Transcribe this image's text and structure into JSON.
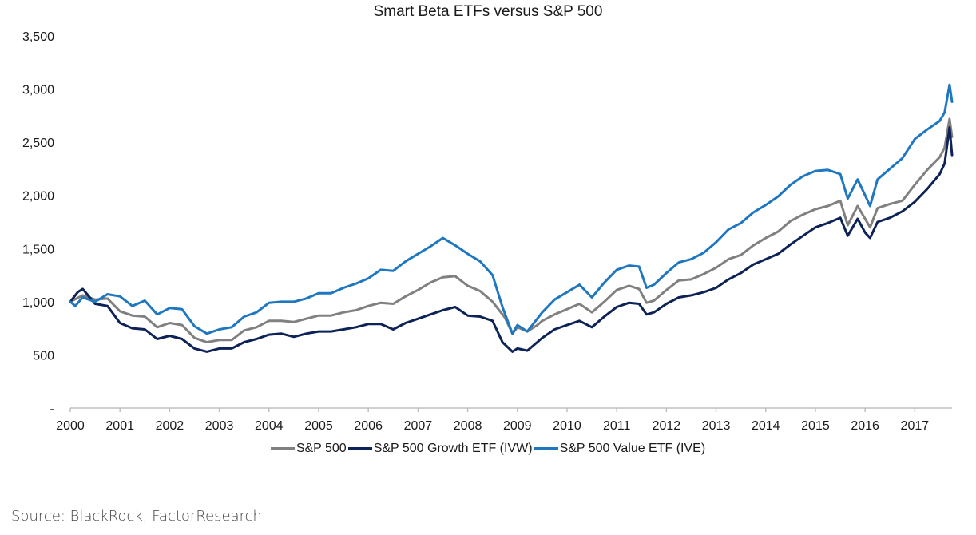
{
  "chart_data": {
    "type": "line",
    "title": "Smart Beta ETFs versus S&P 500",
    "xlabel": "",
    "ylabel": "",
    "xlim": [
      2000,
      2017.75
    ],
    "ylim": [
      0,
      3500
    ],
    "x_ticks": [
      "2000",
      "2001",
      "2002",
      "2003",
      "2004",
      "2005",
      "2006",
      "2007",
      "2008",
      "2009",
      "2010",
      "2011",
      "2012",
      "2013",
      "2014",
      "2015",
      "2016",
      "2017"
    ],
    "y_ticks": [
      {
        "value": 0,
        "label": "-"
      },
      {
        "value": 500,
        "label": "500"
      },
      {
        "value": 1000,
        "label": "1,000"
      },
      {
        "value": 1500,
        "label": "1,500"
      },
      {
        "value": 2000,
        "label": "2,000"
      },
      {
        "value": 2500,
        "label": "2,500"
      },
      {
        "value": 3000,
        "label": "3,000"
      },
      {
        "value": 3500,
        "label": "3,500"
      }
    ],
    "grid": false,
    "legend_position": "bottom",
    "series": [
      {
        "name": "S&P 500",
        "color": "#808080",
        "points": [
          [
            2000.0,
            1000
          ],
          [
            2000.25,
            1060
          ],
          [
            2000.5,
            1020
          ],
          [
            2000.75,
            1030
          ],
          [
            2001.0,
            910
          ],
          [
            2001.25,
            870
          ],
          [
            2001.5,
            860
          ],
          [
            2001.75,
            760
          ],
          [
            2002.0,
            800
          ],
          [
            2002.25,
            780
          ],
          [
            2002.5,
            660
          ],
          [
            2002.75,
            620
          ],
          [
            2003.0,
            640
          ],
          [
            2003.25,
            640
          ],
          [
            2003.5,
            730
          ],
          [
            2003.75,
            760
          ],
          [
            2004.0,
            820
          ],
          [
            2004.25,
            820
          ],
          [
            2004.5,
            810
          ],
          [
            2004.75,
            840
          ],
          [
            2005.0,
            870
          ],
          [
            2005.25,
            870
          ],
          [
            2005.5,
            900
          ],
          [
            2005.75,
            920
          ],
          [
            2006.0,
            960
          ],
          [
            2006.25,
            990
          ],
          [
            2006.5,
            980
          ],
          [
            2006.75,
            1050
          ],
          [
            2007.0,
            1110
          ],
          [
            2007.25,
            1180
          ],
          [
            2007.5,
            1230
          ],
          [
            2007.75,
            1240
          ],
          [
            2008.0,
            1150
          ],
          [
            2008.25,
            1100
          ],
          [
            2008.5,
            1000
          ],
          [
            2008.75,
            850
          ],
          [
            2008.9,
            700
          ],
          [
            2009.0,
            760
          ],
          [
            2009.2,
            720
          ],
          [
            2009.4,
            780
          ],
          [
            2009.5,
            820
          ],
          [
            2009.75,
            880
          ],
          [
            2010.0,
            930
          ],
          [
            2010.25,
            980
          ],
          [
            2010.5,
            900
          ],
          [
            2010.75,
            1000
          ],
          [
            2011.0,
            1110
          ],
          [
            2011.25,
            1150
          ],
          [
            2011.45,
            1120
          ],
          [
            2011.6,
            990
          ],
          [
            2011.75,
            1010
          ],
          [
            2012.0,
            1110
          ],
          [
            2012.25,
            1200
          ],
          [
            2012.5,
            1210
          ],
          [
            2012.75,
            1260
          ],
          [
            2013.0,
            1320
          ],
          [
            2013.25,
            1400
          ],
          [
            2013.5,
            1440
          ],
          [
            2013.75,
            1530
          ],
          [
            2014.0,
            1600
          ],
          [
            2014.25,
            1660
          ],
          [
            2014.5,
            1760
          ],
          [
            2014.75,
            1820
          ],
          [
            2015.0,
            1870
          ],
          [
            2015.25,
            1900
          ],
          [
            2015.5,
            1950
          ],
          [
            2015.65,
            1720
          ],
          [
            2015.85,
            1900
          ],
          [
            2016.0,
            1780
          ],
          [
            2016.1,
            1700
          ],
          [
            2016.25,
            1880
          ],
          [
            2016.5,
            1920
          ],
          [
            2016.75,
            1950
          ],
          [
            2017.0,
            2100
          ],
          [
            2017.25,
            2240
          ],
          [
            2017.5,
            2360
          ],
          [
            2017.6,
            2450
          ],
          [
            2017.7,
            2720
          ],
          [
            2017.75,
            2550
          ]
        ]
      },
      {
        "name": "S&P 500 Growth ETF (IVW)",
        "color": "#0d2257",
        "points": [
          [
            2000.0,
            1000
          ],
          [
            2000.15,
            1090
          ],
          [
            2000.25,
            1120
          ],
          [
            2000.5,
            980
          ],
          [
            2000.75,
            960
          ],
          [
            2001.0,
            800
          ],
          [
            2001.25,
            750
          ],
          [
            2001.5,
            740
          ],
          [
            2001.75,
            650
          ],
          [
            2002.0,
            680
          ],
          [
            2002.25,
            650
          ],
          [
            2002.5,
            560
          ],
          [
            2002.75,
            530
          ],
          [
            2003.0,
            560
          ],
          [
            2003.25,
            560
          ],
          [
            2003.5,
            620
          ],
          [
            2003.75,
            650
          ],
          [
            2004.0,
            690
          ],
          [
            2004.25,
            700
          ],
          [
            2004.5,
            670
          ],
          [
            2004.75,
            700
          ],
          [
            2005.0,
            720
          ],
          [
            2005.25,
            720
          ],
          [
            2005.5,
            740
          ],
          [
            2005.75,
            760
          ],
          [
            2006.0,
            790
          ],
          [
            2006.25,
            790
          ],
          [
            2006.5,
            740
          ],
          [
            2006.75,
            800
          ],
          [
            2007.0,
            840
          ],
          [
            2007.25,
            880
          ],
          [
            2007.5,
            920
          ],
          [
            2007.75,
            950
          ],
          [
            2008.0,
            870
          ],
          [
            2008.25,
            860
          ],
          [
            2008.5,
            820
          ],
          [
            2008.7,
            620
          ],
          [
            2008.9,
            530
          ],
          [
            2009.0,
            560
          ],
          [
            2009.2,
            540
          ],
          [
            2009.4,
            620
          ],
          [
            2009.5,
            660
          ],
          [
            2009.75,
            740
          ],
          [
            2010.0,
            780
          ],
          [
            2010.25,
            820
          ],
          [
            2010.5,
            760
          ],
          [
            2010.75,
            860
          ],
          [
            2011.0,
            950
          ],
          [
            2011.25,
            990
          ],
          [
            2011.45,
            980
          ],
          [
            2011.6,
            880
          ],
          [
            2011.75,
            900
          ],
          [
            2012.0,
            980
          ],
          [
            2012.25,
            1040
          ],
          [
            2012.5,
            1060
          ],
          [
            2012.75,
            1090
          ],
          [
            2013.0,
            1130
          ],
          [
            2013.25,
            1210
          ],
          [
            2013.5,
            1270
          ],
          [
            2013.75,
            1350
          ],
          [
            2014.0,
            1400
          ],
          [
            2014.25,
            1450
          ],
          [
            2014.5,
            1540
          ],
          [
            2014.75,
            1620
          ],
          [
            2015.0,
            1700
          ],
          [
            2015.25,
            1740
          ],
          [
            2015.5,
            1790
          ],
          [
            2015.65,
            1620
          ],
          [
            2015.85,
            1780
          ],
          [
            2016.0,
            1650
          ],
          [
            2016.1,
            1600
          ],
          [
            2016.25,
            1750
          ],
          [
            2016.5,
            1790
          ],
          [
            2016.75,
            1850
          ],
          [
            2017.0,
            1940
          ],
          [
            2017.25,
            2060
          ],
          [
            2017.5,
            2200
          ],
          [
            2017.6,
            2300
          ],
          [
            2017.7,
            2640
          ],
          [
            2017.75,
            2380
          ]
        ]
      },
      {
        "name": "S&P 500 Value ETF (IVE)",
        "color": "#1f77c0",
        "points": [
          [
            2000.0,
            1000
          ],
          [
            2000.1,
            960
          ],
          [
            2000.25,
            1040
          ],
          [
            2000.5,
            1000
          ],
          [
            2000.75,
            1070
          ],
          [
            2001.0,
            1050
          ],
          [
            2001.25,
            960
          ],
          [
            2001.5,
            1010
          ],
          [
            2001.75,
            880
          ],
          [
            2002.0,
            940
          ],
          [
            2002.25,
            930
          ],
          [
            2002.5,
            770
          ],
          [
            2002.75,
            700
          ],
          [
            2003.0,
            740
          ],
          [
            2003.25,
            760
          ],
          [
            2003.5,
            860
          ],
          [
            2003.75,
            900
          ],
          [
            2004.0,
            990
          ],
          [
            2004.25,
            1000
          ],
          [
            2004.5,
            1000
          ],
          [
            2004.75,
            1030
          ],
          [
            2005.0,
            1080
          ],
          [
            2005.25,
            1080
          ],
          [
            2005.5,
            1130
          ],
          [
            2005.75,
            1170
          ],
          [
            2006.0,
            1220
          ],
          [
            2006.25,
            1300
          ],
          [
            2006.5,
            1290
          ],
          [
            2006.75,
            1380
          ],
          [
            2007.0,
            1450
          ],
          [
            2007.25,
            1520
          ],
          [
            2007.5,
            1600
          ],
          [
            2007.75,
            1530
          ],
          [
            2008.0,
            1450
          ],
          [
            2008.25,
            1380
          ],
          [
            2008.5,
            1250
          ],
          [
            2008.7,
            950
          ],
          [
            2008.9,
            700
          ],
          [
            2009.0,
            780
          ],
          [
            2009.2,
            720
          ],
          [
            2009.4,
            840
          ],
          [
            2009.5,
            900
          ],
          [
            2009.75,
            1020
          ],
          [
            2010.0,
            1090
          ],
          [
            2010.25,
            1160
          ],
          [
            2010.5,
            1040
          ],
          [
            2010.75,
            1180
          ],
          [
            2011.0,
            1300
          ],
          [
            2011.25,
            1340
          ],
          [
            2011.45,
            1330
          ],
          [
            2011.6,
            1130
          ],
          [
            2011.75,
            1160
          ],
          [
            2012.0,
            1270
          ],
          [
            2012.25,
            1370
          ],
          [
            2012.5,
            1400
          ],
          [
            2012.75,
            1460
          ],
          [
            2013.0,
            1560
          ],
          [
            2013.25,
            1680
          ],
          [
            2013.5,
            1740
          ],
          [
            2013.75,
            1840
          ],
          [
            2014.0,
            1910
          ],
          [
            2014.25,
            1990
          ],
          [
            2014.5,
            2100
          ],
          [
            2014.75,
            2180
          ],
          [
            2015.0,
            2230
          ],
          [
            2015.25,
            2240
          ],
          [
            2015.5,
            2200
          ],
          [
            2015.65,
            1970
          ],
          [
            2015.85,
            2150
          ],
          [
            2016.0,
            2000
          ],
          [
            2016.1,
            1900
          ],
          [
            2016.25,
            2150
          ],
          [
            2016.5,
            2250
          ],
          [
            2016.75,
            2350
          ],
          [
            2017.0,
            2530
          ],
          [
            2017.25,
            2620
          ],
          [
            2017.5,
            2700
          ],
          [
            2017.6,
            2780
          ],
          [
            2017.7,
            3040
          ],
          [
            2017.75,
            2880
          ]
        ]
      }
    ]
  },
  "source": "Source: BlackRock, FactorResearch"
}
